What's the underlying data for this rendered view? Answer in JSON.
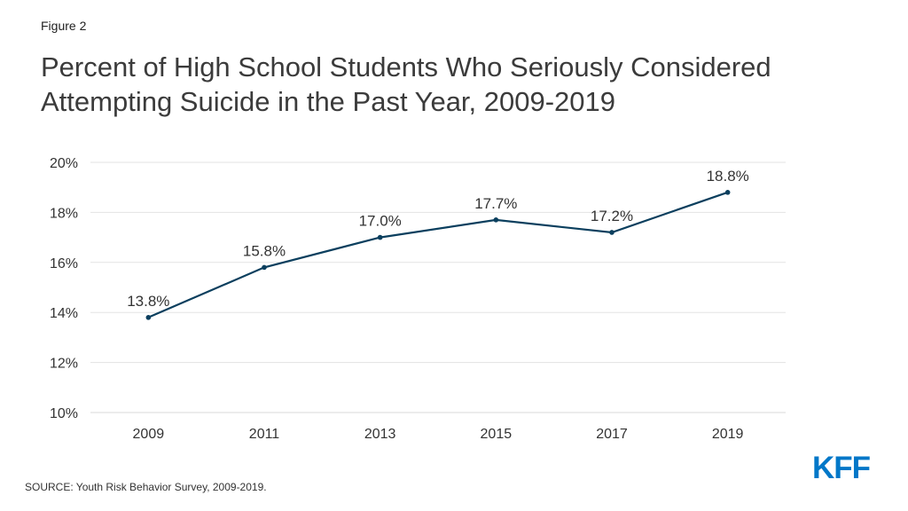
{
  "figure_label": "Figure 2",
  "title": "Percent of High School Students Who Seriously Considered Attempting Suicide in the Past Year, 2009-2019",
  "source": "SOURCE: Youth Risk Behavior Survey, 2009-2019.",
  "logo": {
    "text": "KFF",
    "color": "#0077c8"
  },
  "colors": {
    "series": "#0b3f5e"
  },
  "chart_data": {
    "type": "line",
    "title": "Percent of High School Students Who Seriously Considered Attempting Suicide in the Past Year, 2009-2019",
    "xlabel": "",
    "ylabel": "",
    "categories": [
      "2009",
      "2011",
      "2013",
      "2015",
      "2017",
      "2019"
    ],
    "values": [
      13.8,
      15.8,
      17.0,
      17.7,
      17.2,
      18.8
    ],
    "data_labels": [
      "13.8%",
      "15.8%",
      "17.0%",
      "17.7%",
      "17.2%",
      "18.8%"
    ],
    "ylim": [
      10,
      20
    ],
    "yticks": [
      10,
      12,
      14,
      16,
      18,
      20
    ],
    "ytick_labels": [
      "10%",
      "12%",
      "14%",
      "16%",
      "18%",
      "20%"
    ],
    "grid": true,
    "legend": "none"
  }
}
